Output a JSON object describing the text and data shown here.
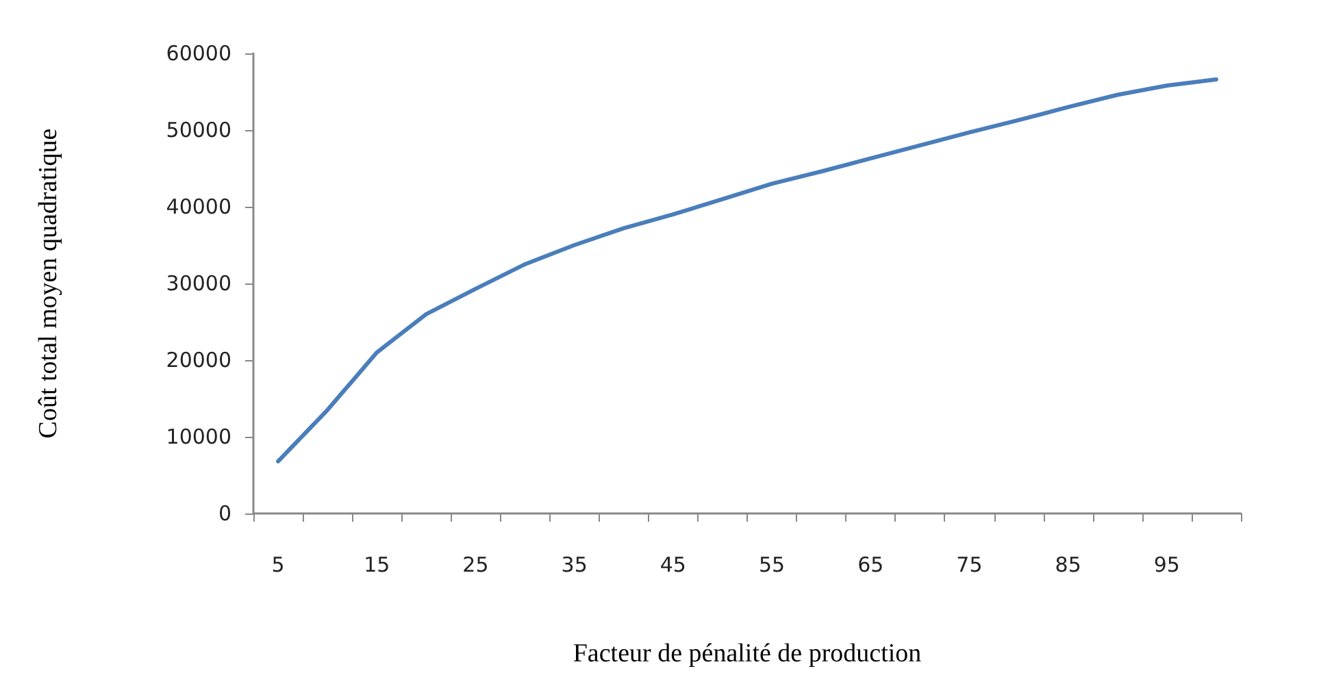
{
  "chart_data": {
    "type": "line",
    "xlabel": "Facteur de pénalité de production",
    "ylabel": "Coût total moyen quadratique",
    "categories": [
      "5",
      null,
      "15",
      null,
      "25",
      null,
      "35",
      null,
      "45",
      null,
      "55",
      null,
      "65",
      null,
      "75",
      null,
      "85",
      null,
      "95",
      null
    ],
    "series": [
      {
        "color": "#4a7ebb",
        "values": [
          6800,
          13500,
          21000,
          26000,
          29300,
          32500,
          35000,
          37200,
          39000,
          41000,
          43000,
          44600,
          46300,
          48000,
          49700,
          51300,
          53000,
          54600,
          55800,
          56600
        ]
      }
    ],
    "ylim": [
      0,
      60000
    ],
    "yticks": [
      0,
      10000,
      20000,
      30000,
      40000,
      50000,
      60000
    ],
    "grid": false,
    "marker": "none",
    "line_style": "solid"
  }
}
